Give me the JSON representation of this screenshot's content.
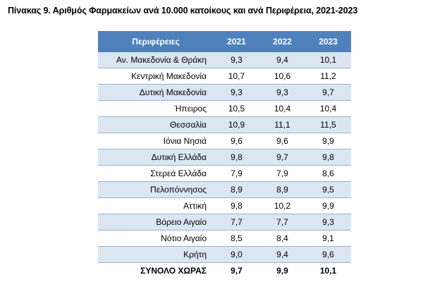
{
  "title": "Πίνακας 9. Αριθμός Φαρμακείων ανά 10.000 κατοίκους και ανά Περιφέρεια, 2021-2023",
  "table": {
    "header": {
      "region": "Περιφέρειες",
      "years": [
        "2021",
        "2022",
        "2023"
      ]
    },
    "rows": [
      {
        "region": "Αν. Μακεδονία & Θράκη",
        "values": [
          "9,3",
          "9,4",
          "10,1"
        ]
      },
      {
        "region": "Κεντρική Μακεδονία",
        "values": [
          "10,7",
          "10,6",
          "11,2"
        ]
      },
      {
        "region": "Δυτική Μακεδονία",
        "values": [
          "9,3",
          "9,3",
          "9,7"
        ]
      },
      {
        "region": "Ήπειρος",
        "values": [
          "10,5",
          "10,4",
          "10,4"
        ]
      },
      {
        "region": "Θεσσαλία",
        "values": [
          "10,9",
          "11,1",
          "11,5"
        ]
      },
      {
        "region": "Ιόνια Νησιά",
        "values": [
          "9,6",
          "9,6",
          "9,9"
        ]
      },
      {
        "region": "Δυτική Ελλάδα",
        "values": [
          "9,8",
          "9,7",
          "9,8"
        ]
      },
      {
        "region": "Στερεά Ελλάδα",
        "values": [
          "7,9",
          "7,9",
          "8,6"
        ]
      },
      {
        "region": "Πελοπόννησος",
        "values": [
          "8,9",
          "8,9",
          "9,5"
        ]
      },
      {
        "region": "Αττική",
        "values": [
          "9,8",
          "10,2",
          "9,9"
        ]
      },
      {
        "region": "Βόρειο Αιγαίο",
        "values": [
          "7,7",
          "7,7",
          "9,3"
        ]
      },
      {
        "region": "Νότιο Αιγαίο",
        "values": [
          "8,5",
          "8,4",
          "9,1"
        ]
      },
      {
        "region": "Κρήτη",
        "values": [
          "9,0",
          "9,4",
          "9,6"
        ]
      }
    ],
    "total": {
      "region": "ΣΥΝΟΛΟ ΧΩΡΑΣ",
      "values": [
        "9,7",
        "9,9",
        "10,1"
      ]
    }
  },
  "colors": {
    "header_bg": "#4f81bd",
    "header_text": "#ffffff",
    "band_row": "#dce6f1",
    "row_border": "#95b3d7"
  }
}
